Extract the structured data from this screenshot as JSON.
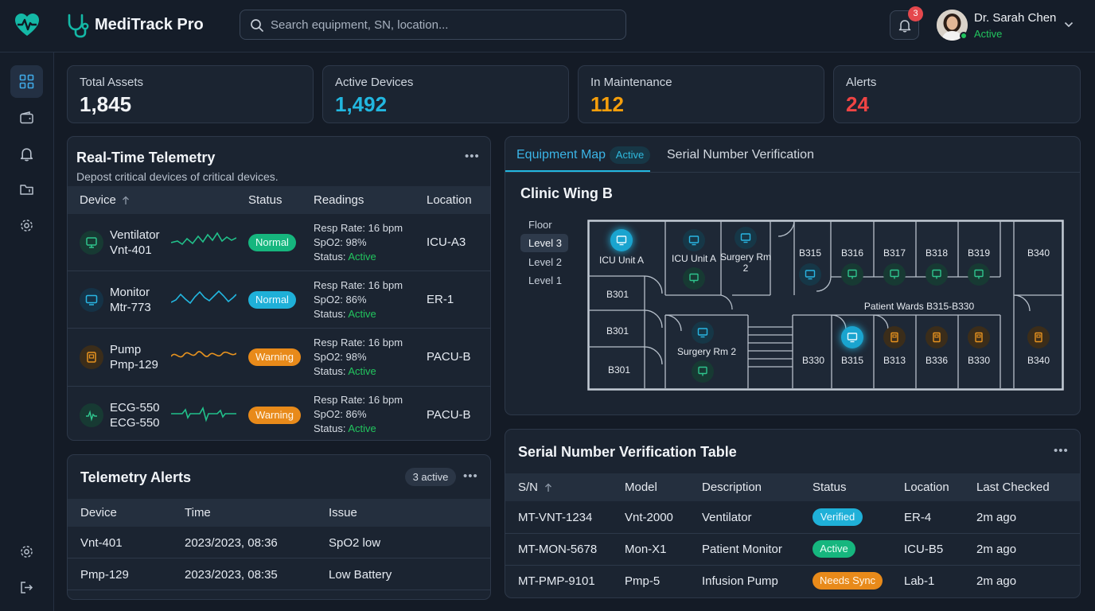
{
  "app": {
    "title": "MediTrack Pro"
  },
  "search": {
    "placeholder": "Search equipment, SN, location..."
  },
  "notifications": {
    "count": "3"
  },
  "user": {
    "name": "Dr. Sarah Chen",
    "status": "Active"
  },
  "sidebar": {
    "items": [
      "dashboard-icon",
      "wallet-icon",
      "bell-icon",
      "folder-icon",
      "settings-icon",
      "settings-icon",
      "logout-icon"
    ]
  },
  "stats": [
    {
      "label": "Total Assets",
      "value": "1,845",
      "color": "#f2f4f7"
    },
    {
      "label": "Active Devices",
      "value": "1,492",
      "color": "#22b7e0"
    },
    {
      "label": "In Maintenance",
      "value": "112",
      "color": "#f59e0b"
    },
    {
      "label": "Alerts",
      "value": "24",
      "color": "#ef4444"
    }
  ],
  "telemetry": {
    "title": "Real-Time Telemetry",
    "subtitle": "Depost critical devices of critical devices.",
    "headers": {
      "device": "Device",
      "status": "Status",
      "readings": "Readings",
      "location": "Location"
    },
    "reading_labels": {
      "resp": "Resp Rate:",
      "spo2": "SpO2:",
      "status": "Status:"
    },
    "rows": [
      {
        "name": "Ventilator",
        "model": "Vnt-401",
        "status": "Normal",
        "resp": "16 bpm",
        "spo2": "98%",
        "state": "Active",
        "location": "ICU-A3"
      },
      {
        "name": "Monitor",
        "model": "Mtr-773",
        "status": "Normal",
        "resp": "16 bpm",
        "spo2": "86%",
        "state": "Active",
        "location": "ER-1"
      },
      {
        "name": "Pump",
        "model": "Pmp-129",
        "status": "Warning",
        "resp": "16 bpm",
        "spo2": "98%",
        "state": "Active",
        "location": "PACU-B"
      },
      {
        "name": "ECG-550",
        "model": "ECG-550",
        "status": "Warning",
        "resp": "16 bpm",
        "spo2": "86%",
        "state": "Active",
        "location": "PACU-B"
      }
    ]
  },
  "alerts": {
    "title": "Telemetry Alerts",
    "badge": "3 active",
    "headers": {
      "device": "Device",
      "time": "Time",
      "issue": "Issue"
    },
    "rows": [
      {
        "device": "Vnt-401",
        "time": "2023/2023, 08:36",
        "issue": "SpO2 low"
      },
      {
        "device": "Pmp-129",
        "time": "2023/2023, 08:35",
        "issue": "Low Battery"
      }
    ]
  },
  "map": {
    "tabs": {
      "map": "Equipment Map",
      "badge": "Active",
      "serial": "Serial Number Verification"
    },
    "wing": "Clinic Wing B",
    "floors": {
      "label": "Floor",
      "levels": [
        "Level 3",
        "Level 2",
        "Level 1"
      ]
    },
    "rooms": {
      "icu": "ICU Unit A",
      "icu2": "ICU Unit A",
      "surgery_rm_2": "Surgery Rm 2",
      "surgery_rm_2b": "Surgery Rm 2",
      "b315": "B315",
      "b316": "B316",
      "b317": "B317",
      "b318": "B318",
      "b319": "B319",
      "b340": "B340",
      "b301a": "B301",
      "b301b": "B301",
      "b301c": "B301",
      "wards": "Patient Wards B315-B330",
      "b330a": "B330",
      "b315b": "B315",
      "b313": "B313",
      "b336": "B336",
      "b330b": "B330",
      "b340b": "B340"
    }
  },
  "serial": {
    "title": "Serial Number Verification Table",
    "headers": {
      "sn": "S/N",
      "model": "Model",
      "description": "Description",
      "status": "Status",
      "location": "Location",
      "checked": "Last Checked"
    },
    "rows": [
      {
        "sn": "MT-VNT-1234",
        "model": "Vnt-2000",
        "description": "Ventilator",
        "status": "Verified",
        "location": "ER-4",
        "checked": "2m ago"
      },
      {
        "sn": "MT-MON-5678",
        "model": "Mon-X1",
        "description": "Patient Monitor",
        "status": "Active",
        "location": "ICU-B5",
        "checked": "2m ago"
      },
      {
        "sn": "MT-PMP-9101",
        "model": "Pmp-5",
        "description": "Infusion Pump",
        "status": "Needs Sync",
        "location": "Lab-1",
        "checked": "2m ago"
      }
    ]
  },
  "colors": {
    "accent": "#22b7e0",
    "success": "#10b981",
    "warning": "#e88a1a",
    "danger": "#ef4444"
  }
}
